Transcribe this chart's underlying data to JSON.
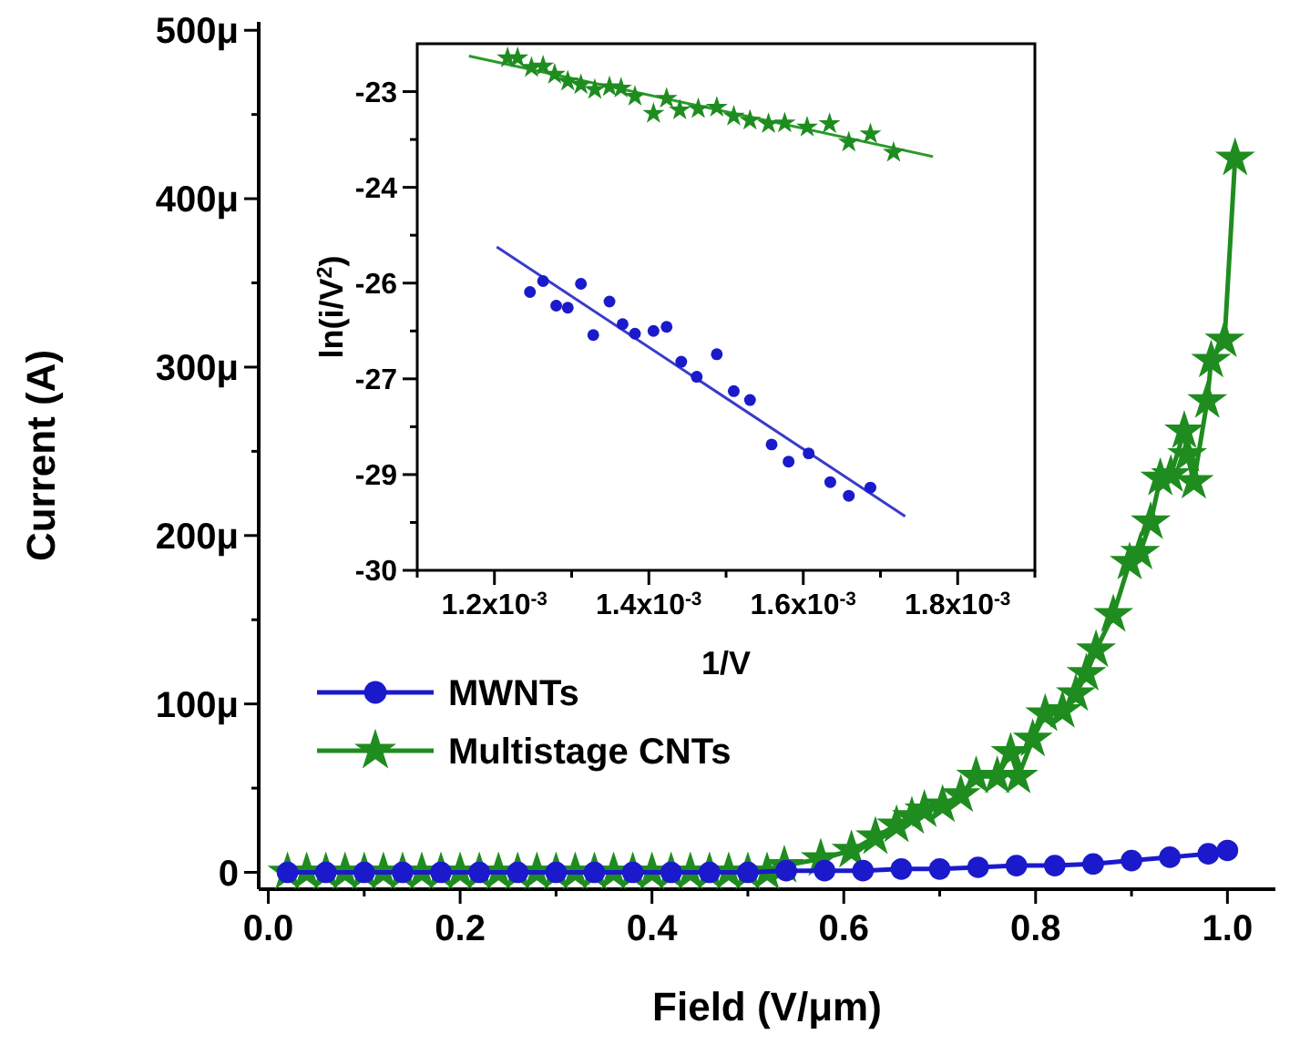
{
  "chart_data": [
    {
      "type": "line",
      "xlabel": "Field (V/μm)",
      "ylabel": "Current (A)",
      "legend": "bottom left",
      "xlim": [
        -0.01,
        1.05
      ],
      "ylim": [
        -10,
        505
      ],
      "xticks": [
        {
          "value": 0,
          "label": "0.0"
        },
        {
          "value": 0.1,
          "label": null
        },
        {
          "value": 0.2,
          "label": "0.2"
        },
        {
          "value": 0.3,
          "label": null
        },
        {
          "value": 0.4,
          "label": "0.4"
        },
        {
          "value": 0.5,
          "label": null
        },
        {
          "value": 0.6,
          "label": "0.6"
        },
        {
          "value": 0.7,
          "label": null
        },
        {
          "value": 0.8,
          "label": "0.8"
        },
        {
          "value": 0.9,
          "label": null
        },
        {
          "value": 1.0,
          "label": "1.0"
        }
      ],
      "yticks": [
        {
          "value": 0,
          "label": "0"
        },
        {
          "value": 50,
          "label": null
        },
        {
          "value": 100,
          "label": "100μ"
        },
        {
          "value": 150,
          "label": null
        },
        {
          "value": 200,
          "label": "200μ"
        },
        {
          "value": 250,
          "label": null
        },
        {
          "value": 300,
          "label": "300μ"
        },
        {
          "value": 350,
          "label": null
        },
        {
          "value": 400,
          "label": "400μ"
        },
        {
          "value": 450,
          "label": null
        },
        {
          "value": 500,
          "label": "500μ"
        }
      ],
      "series": [
        {
          "name": "MWNTs",
          "color": "#1a1acc",
          "marker": "circle",
          "x": [
            0.02,
            0.06,
            0.1,
            0.14,
            0.18,
            0.22,
            0.26,
            0.3,
            0.34,
            0.38,
            0.42,
            0.46,
            0.5,
            0.54,
            0.58,
            0.62,
            0.66,
            0.7,
            0.74,
            0.78,
            0.82,
            0.86,
            0.9,
            0.94,
            0.98,
            1.0
          ],
          "values": [
            0,
            0,
            0,
            0,
            0,
            0,
            0,
            0,
            0,
            0,
            0,
            0,
            0,
            1,
            1,
            1,
            2,
            2,
            3,
            4,
            4,
            5,
            7,
            9,
            11,
            13
          ]
        },
        {
          "name": "Multistage CNTs",
          "color": "#1f8c1f",
          "marker": "star",
          "x": [
            0.02,
            0.04,
            0.06,
            0.08,
            0.1,
            0.12,
            0.14,
            0.16,
            0.18,
            0.2,
            0.22,
            0.24,
            0.26,
            0.28,
            0.3,
            0.32,
            0.34,
            0.36,
            0.38,
            0.4,
            0.42,
            0.44,
            0.46,
            0.48,
            0.5,
            0.52,
            0.538,
            0.576,
            0.608,
            0.633,
            0.655,
            0.671,
            0.684,
            0.703,
            0.722,
            0.738,
            0.76,
            0.774,
            0.782,
            0.797,
            0.81,
            0.828,
            0.842,
            0.853,
            0.863,
            0.881,
            0.898,
            0.909,
            0.92,
            0.93,
            0.941,
            0.955,
            0.958,
            0.965,
            0.979,
            0.983,
            0.997,
            1.008
          ],
          "values": [
            0,
            0,
            0,
            0,
            0,
            0,
            0,
            0,
            0,
            0,
            0,
            0,
            0,
            0,
            0,
            0,
            0,
            0,
            0,
            0,
            0,
            0,
            0,
            0,
            0,
            0,
            4,
            8,
            13,
            21,
            28,
            33,
            37,
            40,
            46,
            57,
            57,
            71,
            57,
            79,
            94,
            96,
            106,
            118,
            132,
            153,
            184,
            190,
            208,
            234,
            236,
            262,
            248,
            232,
            280,
            304,
            316,
            424
          ]
        }
      ]
    },
    {
      "type": "scatter",
      "xlabel": "1/V",
      "ylabel": "ln(i/V$^{2}$)",
      "xlim": [
        0.0011,
        0.0019
      ],
      "ylim": [
        -30,
        -22.3
      ],
      "xticks": [
        {
          "value": 0.0011,
          "label": null
        },
        {
          "value": 0.0012,
          "label": "1.2x10$^{-3}$"
        },
        {
          "value": 0.0013,
          "label": null
        },
        {
          "value": 0.0014,
          "label": "1.4x10$^{-3}$"
        },
        {
          "value": 0.0015,
          "label": null
        },
        {
          "value": 0.0016,
          "label": "1.6x10$^{-3}$"
        },
        {
          "value": 0.0017,
          "label": null
        },
        {
          "value": 0.0018,
          "label": "1.8x10$^{-3}$"
        },
        {
          "value": 0.0019,
          "label": null
        }
      ],
      "yticks": [
        {
          "value": -30,
          "label": "-30"
        },
        {
          "value": -29.3,
          "label": null
        },
        {
          "value": -28.6,
          "label": "-29"
        },
        {
          "value": -27.9,
          "label": null
        },
        {
          "value": -27.2,
          "label": "-27"
        },
        {
          "value": -26.5,
          "label": null
        },
        {
          "value": -25.8,
          "label": "-26"
        },
        {
          "value": -25.1,
          "label": null
        },
        {
          "value": -24.4,
          "label": "-24"
        },
        {
          "value": -23.7,
          "label": null
        },
        {
          "value": -23,
          "label": "-23"
        }
      ],
      "series": [
        {
          "color": "#1f8c1f",
          "marker": "star",
          "x": [
            0.001217,
            0.00123,
            0.001248,
            0.001263,
            0.001278,
            0.001295,
            0.001312,
            0.00133,
            0.001349,
            0.001364,
            0.001382,
            0.001406,
            0.001423,
            0.00144,
            0.001464,
            0.001488,
            0.00151,
            0.001531,
            0.001555,
            0.001576,
            0.001605,
            0.001634,
            0.001659,
            0.001687,
            0.001717
          ],
          "values": [
            -22.51,
            -22.51,
            -22.65,
            -22.63,
            -22.75,
            -22.85,
            -22.9,
            -22.97,
            -22.93,
            -22.95,
            -23.07,
            -23.32,
            -23.1,
            -23.27,
            -23.25,
            -23.23,
            -23.36,
            -23.42,
            -23.47,
            -23.46,
            -23.52,
            -23.47,
            -23.74,
            -23.62,
            -23.89
          ]
        },
        {
          "color": "#1a1acc",
          "marker": "circle",
          "x": [
            0.001246,
            0.001263,
            0.00128,
            0.001295,
            0.001312,
            0.001328,
            0.001349,
            0.001366,
            0.001382,
            0.001406,
            0.001423,
            0.001442,
            0.001462,
            0.001488,
            0.00151,
            0.001531,
            0.001559,
            0.001581,
            0.001607,
            0.001635,
            0.001659,
            0.001687
          ],
          "values": [
            -25.93,
            -25.77,
            -26.13,
            -26.16,
            -25.81,
            -26.56,
            -26.07,
            -26.4,
            -26.54,
            -26.5,
            -26.44,
            -26.95,
            -27.17,
            -26.84,
            -27.38,
            -27.51,
            -28.16,
            -28.41,
            -28.29,
            -28.71,
            -28.91,
            -28.79
          ]
        },
        {
          "type": "line",
          "color": "#2a9a2a",
          "x": [
            0.001167,
            0.001768
          ],
          "values": [
            -22.48,
            -23.95
          ]
        },
        {
          "type": "line",
          "color": "#3a3acc",
          "x": [
            0.001203,
            0.001732
          ],
          "values": [
            -25.27,
            -29.21
          ]
        }
      ]
    }
  ]
}
